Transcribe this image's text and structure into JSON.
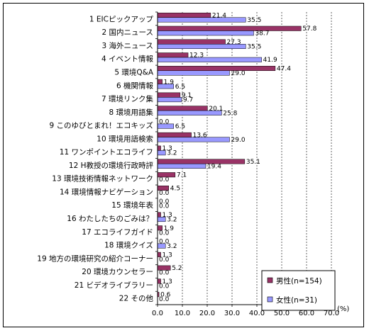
{
  "chart_data": {
    "type": "bar",
    "orientation": "horizontal",
    "categories": [
      "1 EICピックアップ",
      "2 国内ニュース",
      "3 海外ニュース",
      "4 イベント情報",
      "5 環境Q&A",
      "6 機関情報",
      "7 環境リンク集",
      "8 環境用語集",
      "9 このゆびとまれ！エコキッズ",
      "10 環境用語検索",
      "11 ワンポイントエコライフ",
      "12 H教授の環境行政時評",
      "13 環境技術情報ネットワーク",
      "14 環境情報ナビゲーション",
      "15 環境年表",
      "16 わたしたちのごみは？",
      "17 エコライフガイド",
      "18 環境クイズ",
      "19 地方の環境研究の紹介コーナー",
      "20 環境カウンセラー",
      "21 ビデオライブラリー",
      "22 その他"
    ],
    "series": [
      {
        "name": "男性(n=154)",
        "color": "#993366",
        "values": [
          21.4,
          57.8,
          27.3,
          12.3,
          47.4,
          1.9,
          9.1,
          20.1,
          0.0,
          13.6,
          1.3,
          35.1,
          7.1,
          4.5,
          0.0,
          1.3,
          1.9,
          0.0,
          1.3,
          5.2,
          1.3,
          0.6
        ],
        "labels": [
          "21.4",
          "57.8",
          "27.3",
          "12.3",
          "47.4",
          "1.9",
          "9.1",
          "20.1",
          "0.0",
          "13.6",
          "1.3",
          "35.1",
          "7.1",
          "4.5",
          "0.0",
          "1.3",
          "1.9",
          "0.0",
          "1.3",
          "5.2",
          "1.3",
          "0.6"
        ]
      },
      {
        "name": "女性(n=31)",
        "color": "#9999ff",
        "values": [
          35.5,
          38.7,
          35.5,
          41.9,
          29.0,
          6.5,
          9.7,
          25.8,
          6.5,
          29.0,
          3.2,
          19.4,
          0.0,
          0.0,
          0.0,
          3.2,
          0.0,
          3.2,
          0.0,
          0.0,
          0.0,
          0.0
        ],
        "labels": [
          "35.5",
          "38.7",
          "35.5",
          "41.9",
          "29.0",
          "6.5",
          "9.7",
          "25.8",
          "6.5",
          "29.0",
          "3.2",
          "19.4",
          "0.0",
          "0.0",
          "0.0",
          "3.2",
          "0.0",
          "3.2",
          "0.0",
          "0.0",
          "0.0",
          "0.0"
        ]
      }
    ],
    "xlim": [
      0,
      70
    ],
    "xticks": [
      "0.0",
      "10.0",
      "20.0",
      "30.0",
      "40.0",
      "50.0",
      "60.0",
      "70.0"
    ],
    "xunit": "(%)",
    "grid": "vertical-dashed",
    "legend_position": "bottom-right"
  }
}
